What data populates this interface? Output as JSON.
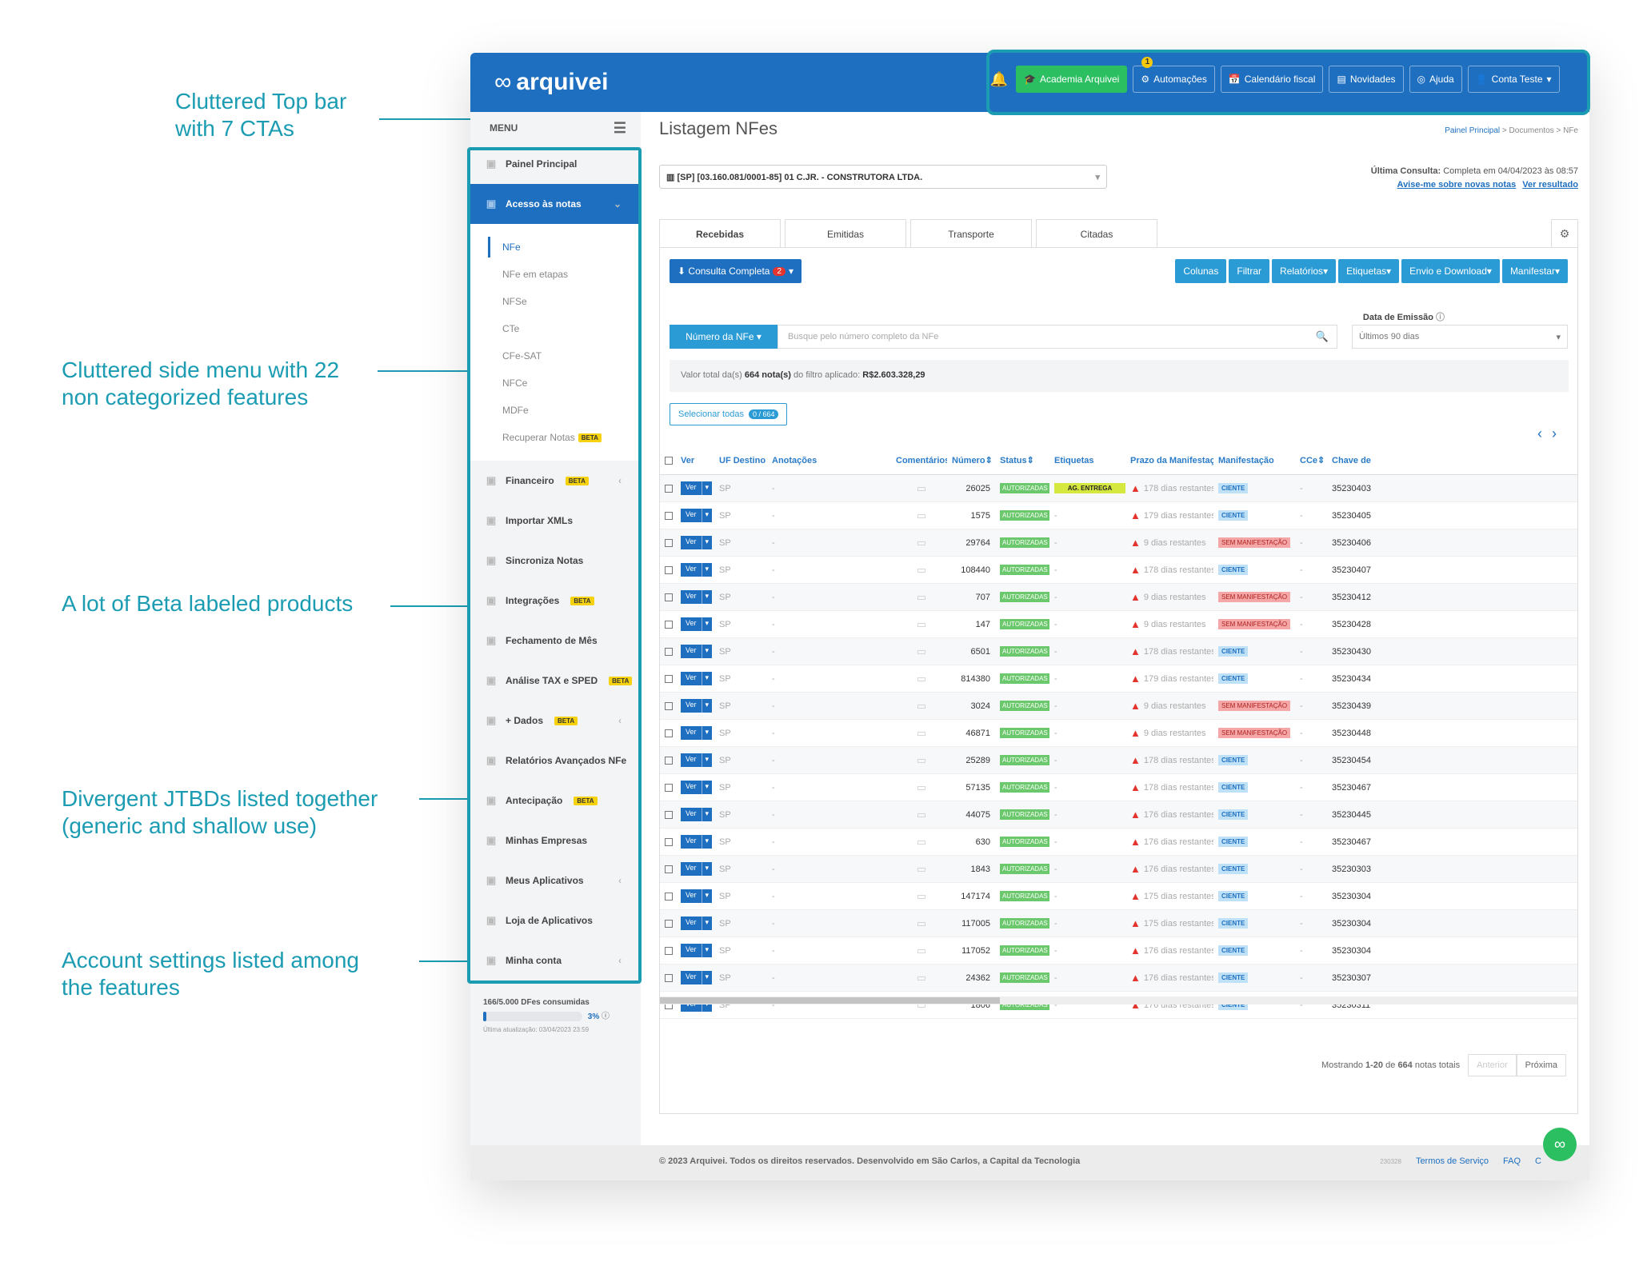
{
  "annotations": {
    "top": [
      "Cluttered Top bar",
      "with 7 CTAs"
    ],
    "side": [
      "Cluttered side menu with 22",
      "non categorized features"
    ],
    "beta": [
      "A lot of Beta labeled products"
    ],
    "jtbd": [
      "Divergent JTBDs listed together",
      "(generic and shallow use)"
    ],
    "account": [
      "Account settings listed among",
      "the features"
    ]
  },
  "topbar": {
    "logo": "arquivei",
    "academia": "Academia Arquivei",
    "automacoes": "Automações",
    "notif_count": "1",
    "calendario": "Calendário fiscal",
    "novidades": "Novidades",
    "ajuda": "Ajuda",
    "conta": "Conta Teste"
  },
  "sidebar": {
    "menu_label": "MENU",
    "items": [
      {
        "label": "Painel Principal",
        "beta": false,
        "chevron": false
      },
      {
        "label": "Acesso às notas",
        "beta": false,
        "chevron": true
      }
    ],
    "sub": [
      "NFe",
      "NFe em etapas",
      "NFSe",
      "CTe",
      "CFe-SAT",
      "NFCe",
      "MDFe",
      "Recuperar Notas"
    ],
    "rest": [
      {
        "label": "Financeiro",
        "beta": true,
        "chevron": true
      },
      {
        "label": "Importar XMLs",
        "beta": false,
        "chevron": false
      },
      {
        "label": "Sincroniza Notas",
        "beta": false,
        "chevron": false
      },
      {
        "label": "Integrações",
        "beta": true,
        "chevron": false
      },
      {
        "label": "Fechamento de Mês",
        "beta": false,
        "chevron": false
      },
      {
        "label": "Análise TAX e SPED",
        "beta": true,
        "chevron": false
      },
      {
        "label": "+ Dados",
        "beta": true,
        "chevron": true
      },
      {
        "label": "Relatórios Avançados NFe",
        "beta": false,
        "chevron": false
      },
      {
        "label": "Antecipação",
        "beta": true,
        "chevron": false
      },
      {
        "label": "Minhas Empresas",
        "beta": false,
        "chevron": false
      },
      {
        "label": "Meus Aplicativos",
        "beta": false,
        "chevron": true
      },
      {
        "label": "Loja de Aplicativos",
        "beta": false,
        "chevron": false
      },
      {
        "label": "Minha conta",
        "beta": false,
        "chevron": true
      }
    ],
    "beta_label": "BETA",
    "usage_text": "166/5.000 DFes consumidas",
    "usage_pct": "3%",
    "usage_fraction": 0.03,
    "usage_updated": "Última atualização: 03/04/2023 23:59"
  },
  "main": {
    "title": "Listagem NFes",
    "breadcrumb": [
      "Painel Principal",
      "Documentos",
      "NFe"
    ],
    "company": "[SP] [03.160.081/0001-85] 01 C.JR. - CONSTRUTORA LTDA.",
    "last_label": "Última Consulta:",
    "last_value": "Completa em 04/04/2023 às 08:57",
    "avise": "Avise-me sobre novas notas",
    "ver_resultado": "Ver resultado",
    "tabs": [
      "Recebidas",
      "Emitidas",
      "Transporte",
      "Citadas"
    ],
    "consulta": "Consulta Completa",
    "consulta_badge": "2",
    "right_buttons": [
      "Colunas",
      "Filtrar",
      "Relatórios",
      "Etiquetas",
      "Envio e Download",
      "Manifestar"
    ],
    "date_label": "Data de Emissão",
    "date_value": "Últimos 90 dias",
    "num_drop": "Número da NFe",
    "search_placeholder": "Busque pelo número completo da NFe",
    "valor_pre": "Valor total da(s)",
    "valor_count": "664 nota(s)",
    "valor_mid": "do filtro aplicado:",
    "valor_total": "R$2.603.328,29",
    "selecionar": "Selecionar todas",
    "sel_badge": "0 / 664",
    "pager_text_pre": "Mostrando",
    "pager_range": "1-20",
    "pager_mid": "de",
    "pager_total": "664",
    "pager_post": "notas totais",
    "anterior": "Anterior",
    "proxima": "Próxima"
  },
  "table": {
    "headers": [
      "Ver",
      "UF Destino",
      "Anotações",
      "Comentários",
      "Número",
      "Status",
      "Etiquetas",
      "Prazo da Manifestação",
      "Manifestação",
      "CCe",
      "Chave de a"
    ],
    "ver_label": "Ver",
    "rows": [
      [
        "SP",
        "26025",
        "AG. ENTREGA",
        "178 dias restantes",
        "CIENTE",
        "35230403"
      ],
      [
        "SP",
        "1575",
        "",
        "179 dias restantes",
        "CIENTE",
        "35230405"
      ],
      [
        "SP",
        "29764",
        "",
        "9 dias restantes",
        "SEM MANIFESTAÇÃO",
        "35230406"
      ],
      [
        "SP",
        "108440",
        "",
        "178 dias restantes",
        "CIENTE",
        "35230407"
      ],
      [
        "SP",
        "707",
        "",
        "9 dias restantes",
        "SEM MANIFESTAÇÃO",
        "35230412"
      ],
      [
        "SP",
        "147",
        "",
        "9 dias restantes",
        "SEM MANIFESTAÇÃO",
        "35230428"
      ],
      [
        "SP",
        "6501",
        "",
        "178 dias restantes",
        "CIENTE",
        "35230430"
      ],
      [
        "SP",
        "814380",
        "",
        "179 dias restantes",
        "CIENTE",
        "35230434"
      ],
      [
        "SP",
        "3024",
        "",
        "9 dias restantes",
        "SEM MANIFESTAÇÃO",
        "35230439"
      ],
      [
        "SP",
        "46871",
        "",
        "9 dias restantes",
        "SEM MANIFESTAÇÃO",
        "35230448"
      ],
      [
        "SP",
        "25289",
        "",
        "178 dias restantes",
        "CIENTE",
        "35230454"
      ],
      [
        "SP",
        "57135",
        "",
        "178 dias restantes",
        "CIENTE",
        "35230467"
      ],
      [
        "SP",
        "44075",
        "",
        "176 dias restantes",
        "CIENTE",
        "35230445"
      ],
      [
        "SP",
        "630",
        "",
        "176 dias restantes",
        "CIENTE",
        "35230467"
      ],
      [
        "SP",
        "1843",
        "",
        "176 dias restantes",
        "CIENTE",
        "35230303"
      ],
      [
        "SP",
        "147174",
        "",
        "175 dias restantes",
        "CIENTE",
        "35230304"
      ],
      [
        "SP",
        "117005",
        "",
        "175 dias restantes",
        "CIENTE",
        "35230304"
      ],
      [
        "SP",
        "117052",
        "",
        "176 dias restantes",
        "CIENTE",
        "35230304"
      ],
      [
        "SP",
        "24362",
        "",
        "176 dias restantes",
        "CIENTE",
        "35230307"
      ],
      [
        "SP",
        "1806",
        "",
        "176 dias restantes",
        "CIENTE",
        "35230311"
      ]
    ],
    "status": "AUTORIZADAS",
    "dash": "-"
  },
  "footer": {
    "text": "© 2023 Arquivei. Todos os direitos reservados. Desenvolvido em São Carlos, a Capital da Tecnologia",
    "version": "230328",
    "terms": "Termos de Serviço",
    "faq": "FAQ",
    "contact": "C"
  }
}
